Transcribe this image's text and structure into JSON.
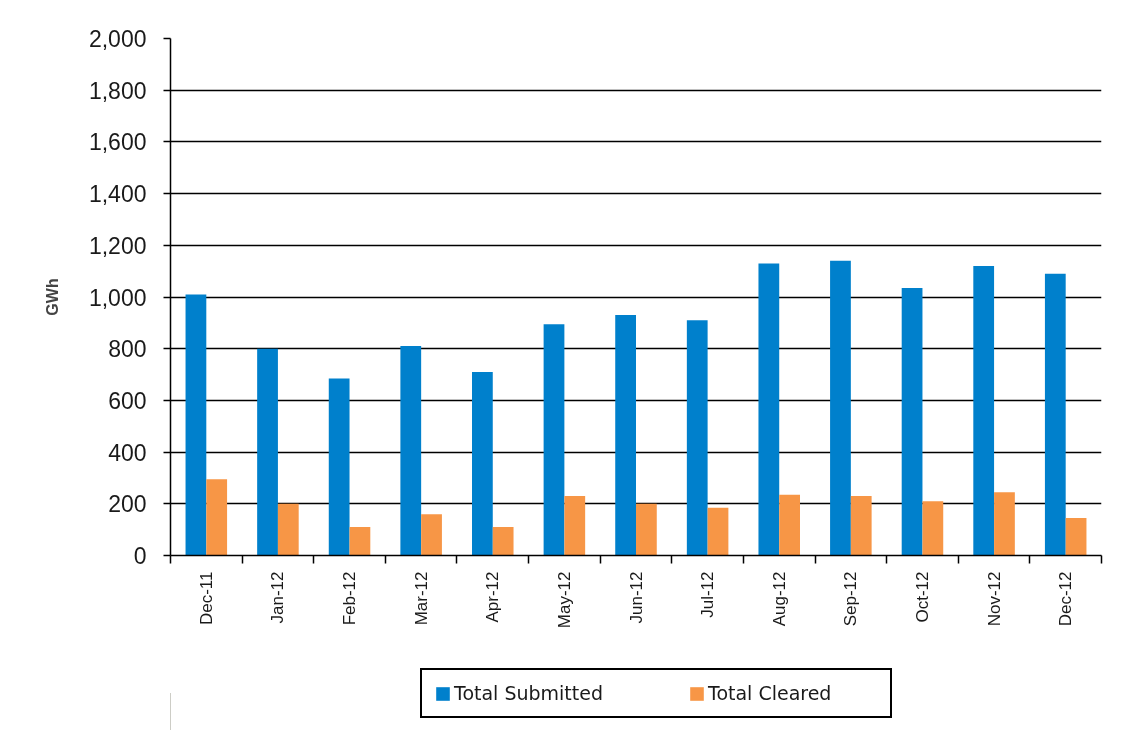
{
  "chart_data": {
    "type": "bar",
    "ylabel": "GWh",
    "categories": [
      "Dec-11",
      "Jan-12",
      "Feb-12",
      "Mar-12",
      "Apr-12",
      "May-12",
      "Jun-12",
      "Jul-12",
      "Aug-12",
      "Sep-12",
      "Oct-12",
      "Nov-12",
      "Dec-12"
    ],
    "series": [
      {
        "name": "Total Submitted",
        "color": "#0080cc",
        "values": [
          1010,
          800,
          685,
          810,
          710,
          895,
          930,
          910,
          1130,
          1140,
          1035,
          1120,
          1090
        ]
      },
      {
        "name": "Total Cleared",
        "color": "#f79646",
        "values": [
          295,
          200,
          110,
          160,
          110,
          230,
          200,
          185,
          235,
          230,
          210,
          245,
          145
        ]
      }
    ],
    "ylim": [
      0,
      2000
    ],
    "yticks": [
      0,
      200,
      400,
      600,
      800,
      {
        "value": 1000,
        "label": "1,000"
      },
      {
        "value": 1200,
        "label": "1,200"
      },
      {
        "value": 1400,
        "label": "1,400"
      },
      {
        "value": 1600,
        "label": "1,600"
      },
      {
        "value": 1800,
        "label": "1,800"
      },
      {
        "value": 2000,
        "label": "2,000"
      }
    ],
    "grid": "y",
    "legend": "bottom"
  }
}
